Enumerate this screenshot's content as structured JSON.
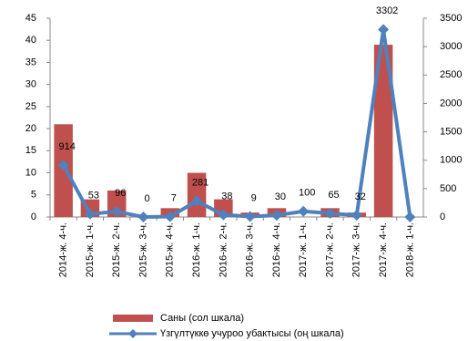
{
  "chart_data": {
    "type": "bar_line",
    "categories": [
      "2014-ж. 4-ч.",
      "2015-ж. 1-ч.",
      "2015-ж. 2-ч.",
      "2015-ж. 3-ч.",
      "2015-ж. 4-ч.",
      "2016-ж. 1-ч.",
      "2016-ж. 2-ч.",
      "2016-ж. 3-ч.",
      "2016-ж. 4-ч.",
      "2017-ж. 1-ч.",
      "2017-ж. 2-ч.",
      "2017-ж. 3-ч.",
      "2017-ж. 4-ч.",
      "2018-ж. 1-ч."
    ],
    "series": [
      {
        "name": "Саны (сол шкала)",
        "color": "#c0504d",
        "type": "bar",
        "values": [
          21,
          4,
          6,
          0,
          2,
          10,
          4,
          1,
          2,
          0,
          2,
          1,
          39,
          0
        ]
      },
      {
        "name": "Үзгүлтүккө учуроо убактысы (оң шкала)",
        "color": "#4f81bd",
        "type": "line",
        "axis": "y2",
        "values": [
          914,
          53,
          96,
          0,
          7,
          281,
          38,
          9,
          30,
          100,
          65,
          32,
          3302,
          0
        ],
        "value_labels": [
          "914",
          "53",
          "96",
          "0",
          "7",
          "281",
          "38",
          "9",
          "30",
          "100",
          "65",
          "32",
          "3302",
          null
        ]
      }
    ],
    "ylim": [
      0,
      45
    ],
    "yticks": [
      0,
      5,
      10,
      15,
      20,
      25,
      30,
      35,
      40,
      45
    ],
    "y2lim": [
      0,
      3500
    ],
    "y2ticks": [
      0,
      500,
      1000,
      1500,
      2000,
      2500,
      3000,
      3500
    ]
  }
}
